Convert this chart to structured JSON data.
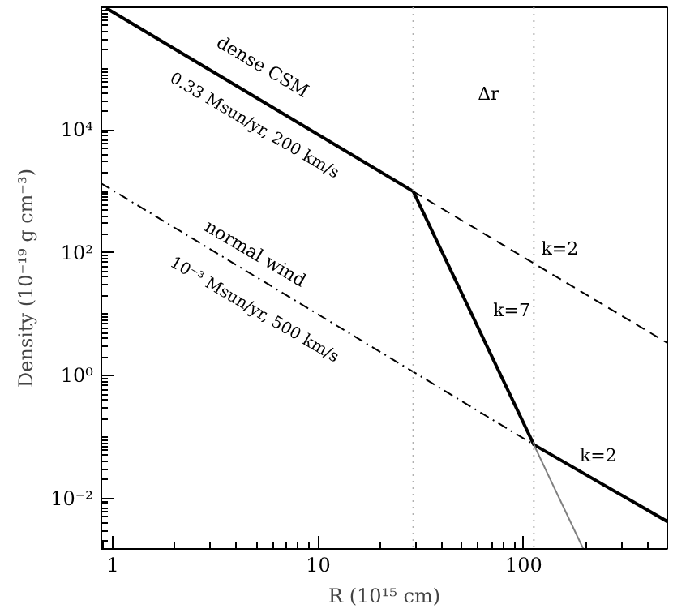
{
  "chart_data": {
    "type": "line",
    "xlabel": "R (10¹⁵ cm)",
    "ylabel": "Density (10⁻¹⁹ g cm⁻³)",
    "log": "xy",
    "xlim": [
      0.88,
      500
    ],
    "ylim": [
      0.0015,
      1000000
    ],
    "xticks": [
      1,
      10,
      100
    ],
    "yticks": [
      {
        "value": 0.01,
        "label": "10⁻²"
      },
      {
        "value": 1,
        "label": "10⁰"
      },
      {
        "value": 100,
        "label": "10²"
      },
      {
        "value": 10000,
        "label": "10⁴"
      }
    ],
    "grid": false,
    "series": [
      {
        "x": [
          0.93,
          29,
          112,
          500
        ],
        "values": [
          970000,
          1000,
          0.075,
          0.0042
        ],
        "color": "#000000",
        "line_style": "solid"
      },
      {
        "x": [
          29,
          500
        ],
        "values": [
          1000,
          3.4
        ],
        "color": "#000000",
        "line_style": "dashed"
      },
      {
        "x": [
          0.88,
          112
        ],
        "values": [
          1350,
          0.075
        ],
        "color": "#000000",
        "line_style": "dashdot"
      },
      {
        "x": [
          112,
          195
        ],
        "values": [
          0.075,
          0.0015
        ],
        "color": "#808080",
        "line_style": "solid"
      }
    ],
    "ref_lines": [
      {
        "axis": "x",
        "value": 29,
        "color": "#b0b0b0",
        "line_style": "dotted"
      },
      {
        "axis": "x",
        "value": 112,
        "color": "#b0b0b0",
        "line_style": "dotted"
      }
    ],
    "annotations": [
      "dense CSM",
      "0.33 Msun/yr, 200 km/s",
      "normal wind",
      "10⁻³ Msun/yr, 500 km/s",
      "Δr",
      "k=2",
      "k=7",
      "k=2"
    ]
  }
}
